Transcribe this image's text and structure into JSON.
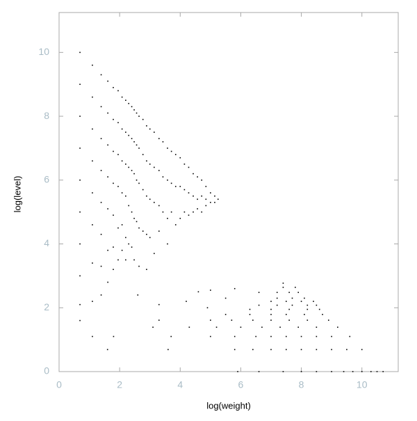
{
  "chart_data": {
    "type": "scatter",
    "x_label": "log(weight)",
    "y_label": "log(level)",
    "color": "#000000",
    "xlim": [
      0,
      11.2
    ],
    "ylim": [
      0,
      11.25
    ],
    "xticks": [
      0,
      2,
      4,
      6,
      8,
      10
    ],
    "yticks": [
      0,
      2,
      4,
      6,
      8,
      10
    ],
    "points": [
      [
        0.69,
        10.0
      ],
      [
        0.69,
        9.0
      ],
      [
        0.69,
        8.0
      ],
      [
        0.69,
        7.0
      ],
      [
        0.69,
        6.0
      ],
      [
        0.69,
        5.0
      ],
      [
        0.69,
        4.0
      ],
      [
        0.69,
        3.0
      ],
      [
        0.69,
        2.1
      ],
      [
        0.69,
        1.6
      ],
      [
        1.1,
        9.6
      ],
      [
        1.1,
        8.6
      ],
      [
        1.1,
        7.6
      ],
      [
        1.1,
        6.6
      ],
      [
        1.1,
        5.6
      ],
      [
        1.1,
        4.6
      ],
      [
        1.1,
        3.4
      ],
      [
        1.1,
        2.2
      ],
      [
        1.1,
        1.1
      ],
      [
        1.39,
        9.3
      ],
      [
        1.39,
        8.3
      ],
      [
        1.39,
        7.3
      ],
      [
        1.39,
        6.3
      ],
      [
        1.39,
        5.3
      ],
      [
        1.39,
        4.3
      ],
      [
        1.39,
        3.3
      ],
      [
        1.39,
        2.4
      ],
      [
        1.61,
        9.1
      ],
      [
        1.61,
        8.1
      ],
      [
        1.61,
        7.1
      ],
      [
        1.61,
        6.1
      ],
      [
        1.61,
        5.1
      ],
      [
        1.61,
        3.8
      ],
      [
        1.61,
        2.8
      ],
      [
        1.79,
        8.9
      ],
      [
        1.79,
        7.9
      ],
      [
        1.79,
        6.9
      ],
      [
        1.79,
        5.9
      ],
      [
        1.79,
        4.9
      ],
      [
        1.79,
        3.9
      ],
      [
        1.79,
        3.2
      ],
      [
        1.95,
        8.8
      ],
      [
        1.95,
        7.8
      ],
      [
        1.95,
        6.8
      ],
      [
        1.95,
        5.8
      ],
      [
        1.95,
        4.5
      ],
      [
        1.95,
        3.5
      ],
      [
        2.08,
        8.6
      ],
      [
        2.08,
        7.6
      ],
      [
        2.08,
        6.6
      ],
      [
        2.08,
        5.6
      ],
      [
        2.08,
        4.6
      ],
      [
        2.08,
        3.8
      ],
      [
        2.2,
        8.5
      ],
      [
        2.2,
        7.5
      ],
      [
        2.2,
        6.5
      ],
      [
        2.2,
        5.5
      ],
      [
        2.2,
        4.2
      ],
      [
        2.2,
        3.5
      ],
      [
        2.3,
        8.4
      ],
      [
        2.3,
        7.4
      ],
      [
        2.3,
        6.4
      ],
      [
        2.3,
        5.2
      ],
      [
        2.3,
        4.0
      ],
      [
        2.4,
        8.3
      ],
      [
        2.4,
        7.3
      ],
      [
        2.4,
        6.3
      ],
      [
        2.4,
        5.0
      ],
      [
        2.4,
        3.9
      ],
      [
        2.48,
        8.2
      ],
      [
        2.48,
        7.2
      ],
      [
        2.48,
        6.2
      ],
      [
        2.48,
        4.8
      ],
      [
        2.48,
        3.5
      ],
      [
        2.56,
        8.1
      ],
      [
        2.56,
        7.1
      ],
      [
        2.56,
        6.0
      ],
      [
        2.56,
        4.7
      ],
      [
        2.64,
        8.0
      ],
      [
        2.64,
        7.0
      ],
      [
        2.64,
        5.9
      ],
      [
        2.64,
        4.5
      ],
      [
        2.64,
        3.3
      ],
      [
        2.77,
        7.9
      ],
      [
        2.77,
        6.8
      ],
      [
        2.77,
        5.7
      ],
      [
        2.77,
        4.4
      ],
      [
        2.89,
        7.7
      ],
      [
        2.89,
        6.6
      ],
      [
        2.89,
        5.5
      ],
      [
        2.89,
        4.3
      ],
      [
        2.89,
        3.2
      ],
      [
        3.0,
        7.6
      ],
      [
        3.0,
        6.5
      ],
      [
        3.0,
        5.4
      ],
      [
        3.0,
        4.2
      ],
      [
        3.14,
        7.5
      ],
      [
        3.14,
        6.4
      ],
      [
        3.14,
        5.3
      ],
      [
        3.14,
        3.7
      ],
      [
        3.3,
        7.3
      ],
      [
        3.3,
        6.3
      ],
      [
        3.3,
        5.2
      ],
      [
        3.3,
        4.4
      ],
      [
        3.43,
        7.2
      ],
      [
        3.43,
        6.1
      ],
      [
        3.43,
        5.0
      ],
      [
        3.58,
        7.0
      ],
      [
        3.58,
        6.0
      ],
      [
        3.58,
        4.8
      ],
      [
        3.58,
        4.0
      ],
      [
        3.71,
        6.9
      ],
      [
        3.71,
        5.9
      ],
      [
        3.71,
        5.0
      ],
      [
        3.85,
        6.8
      ],
      [
        3.85,
        5.8
      ],
      [
        3.85,
        4.6
      ],
      [
        4.0,
        6.7
      ],
      [
        4.0,
        5.8
      ],
      [
        4.0,
        4.8
      ],
      [
        4.14,
        6.5
      ],
      [
        4.14,
        5.7
      ],
      [
        4.14,
        5.0
      ],
      [
        4.28,
        6.4
      ],
      [
        4.28,
        5.6
      ],
      [
        4.28,
        4.9
      ],
      [
        4.43,
        6.2
      ],
      [
        4.43,
        5.5
      ],
      [
        4.43,
        5.0
      ],
      [
        4.57,
        6.1
      ],
      [
        4.57,
        5.4
      ],
      [
        4.57,
        5.1
      ],
      [
        4.71,
        6.0
      ],
      [
        4.71,
        5.5
      ],
      [
        4.71,
        5.0
      ],
      [
        4.85,
        5.8
      ],
      [
        4.85,
        5.4
      ],
      [
        4.85,
        5.2
      ],
      [
        5.0,
        5.6
      ],
      [
        5.0,
        5.3
      ],
      [
        5.14,
        5.5
      ],
      [
        5.14,
        5.3
      ],
      [
        5.25,
        5.4
      ],
      [
        5.9,
        0
      ],
      [
        6.6,
        0
      ],
      [
        7.4,
        0
      ],
      [
        8.0,
        0
      ],
      [
        8.5,
        0
      ],
      [
        9.0,
        0
      ],
      [
        9.4,
        0
      ],
      [
        9.7,
        0
      ],
      [
        10.0,
        0
      ],
      [
        10.3,
        0
      ],
      [
        10.5,
        0
      ],
      [
        10.7,
        0
      ],
      [
        1.6,
        0.69
      ],
      [
        3.6,
        0.69
      ],
      [
        5.8,
        0.69
      ],
      [
        6.4,
        0.69
      ],
      [
        7.0,
        0.69
      ],
      [
        7.5,
        0.69
      ],
      [
        8.0,
        0.69
      ],
      [
        8.5,
        0.69
      ],
      [
        9.0,
        0.69
      ],
      [
        9.5,
        0.69
      ],
      [
        10.0,
        0.69
      ],
      [
        1.8,
        1.1
      ],
      [
        3.7,
        1.1
      ],
      [
        5.0,
        1.1
      ],
      [
        5.8,
        1.1
      ],
      [
        6.5,
        1.1
      ],
      [
        7.0,
        1.1
      ],
      [
        7.5,
        1.1
      ],
      [
        8.0,
        1.1
      ],
      [
        8.5,
        1.1
      ],
      [
        9.0,
        1.1
      ],
      [
        9.6,
        1.1
      ],
      [
        3.1,
        1.39
      ],
      [
        4.3,
        1.39
      ],
      [
        5.2,
        1.39
      ],
      [
        6.0,
        1.39
      ],
      [
        6.7,
        1.39
      ],
      [
        7.3,
        1.39
      ],
      [
        7.9,
        1.39
      ],
      [
        8.5,
        1.39
      ],
      [
        9.2,
        1.39
      ],
      [
        3.3,
        1.61
      ],
      [
        5.0,
        1.61
      ],
      [
        5.7,
        1.61
      ],
      [
        6.4,
        1.61
      ],
      [
        7.0,
        1.61
      ],
      [
        7.6,
        1.61
      ],
      [
        8.2,
        1.61
      ],
      [
        8.9,
        1.61
      ],
      [
        5.5,
        1.79
      ],
      [
        6.3,
        1.79
      ],
      [
        7.0,
        1.79
      ],
      [
        7.5,
        1.79
      ],
      [
        8.1,
        1.79
      ],
      [
        8.7,
        1.79
      ],
      [
        6.3,
        1.95
      ],
      [
        7.0,
        1.95
      ],
      [
        7.6,
        1.95
      ],
      [
        8.2,
        1.95
      ],
      [
        8.6,
        1.95
      ],
      [
        6.6,
        2.08
      ],
      [
        7.2,
        2.08
      ],
      [
        7.7,
        2.08
      ],
      [
        8.2,
        2.08
      ],
      [
        8.5,
        2.08
      ],
      [
        7.0,
        2.2
      ],
      [
        7.5,
        2.2
      ],
      [
        8.0,
        2.2
      ],
      [
        8.4,
        2.2
      ],
      [
        7.2,
        2.3
      ],
      [
        7.7,
        2.3
      ],
      [
        8.1,
        2.3
      ],
      [
        6.6,
        2.48
      ],
      [
        7.2,
        2.48
      ],
      [
        7.6,
        2.48
      ],
      [
        7.9,
        2.48
      ],
      [
        7.4,
        2.64
      ],
      [
        7.8,
        2.64
      ],
      [
        7.4,
        2.77
      ],
      [
        4.6,
        2.5
      ],
      [
        5.0,
        2.55
      ],
      [
        5.8,
        2.6
      ],
      [
        4.2,
        2.2
      ],
      [
        3.3,
        2.1
      ],
      [
        2.6,
        2.4
      ],
      [
        4.9,
        2.0
      ],
      [
        5.5,
        2.3
      ]
    ]
  }
}
